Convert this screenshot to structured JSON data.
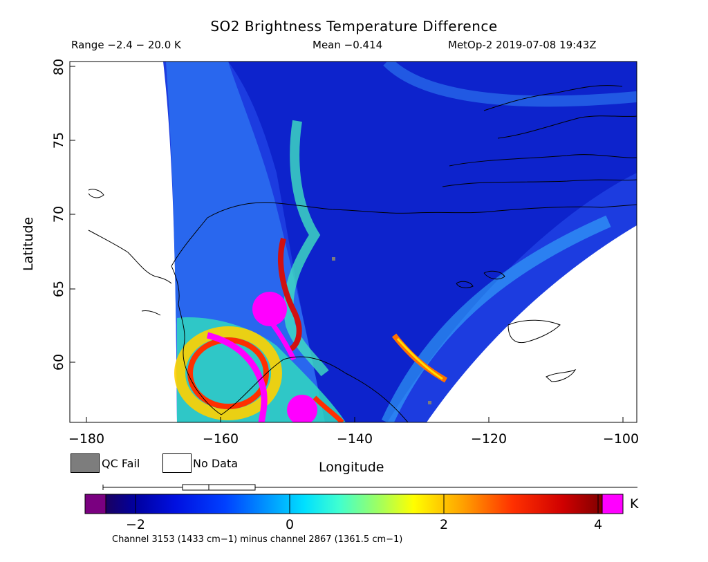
{
  "map": {
    "title": "SO2 Brightness Temperature Difference",
    "range_text": "Range −2.4 − 20.0 K",
    "mean_text": "Mean −0.414",
    "satellite_time": "MetOp-2 2019-07-08 19:43Z",
    "xlabel": "Longitude",
    "ylabel": "Latitude",
    "x_ticks": [
      "−180",
      "−160",
      "−140",
      "−120",
      "−100"
    ],
    "y_ticks": [
      "60",
      "65",
      "70",
      "75",
      "80"
    ],
    "x_range": [
      -182,
      -98
    ],
    "y_range": [
      55.4,
      80.3
    ],
    "background_color": "#ffffff",
    "coastline_color": "#000000"
  },
  "legend": {
    "qc_fail_label": "QC Fail",
    "qc_fail_color": "#7d7d7d",
    "no_data_label": "No Data",
    "no_data_color": "#ffffff"
  },
  "colorbar": {
    "ticks": [
      "−2",
      "0",
      "2",
      "4"
    ],
    "unit": "K",
    "range": [
      -2.5,
      4.0
    ],
    "under_color": "#7a0080",
    "over_color": "#ff00ff",
    "channel_note": "Channel 3153 (1433 cm−1) minus channel 2867 (1361.5 cm−1)",
    "boxplot": {
      "min": -2.4,
      "q1": -1.4,
      "median": -1.0,
      "q3": -0.4,
      "max": 4.0
    }
  }
}
